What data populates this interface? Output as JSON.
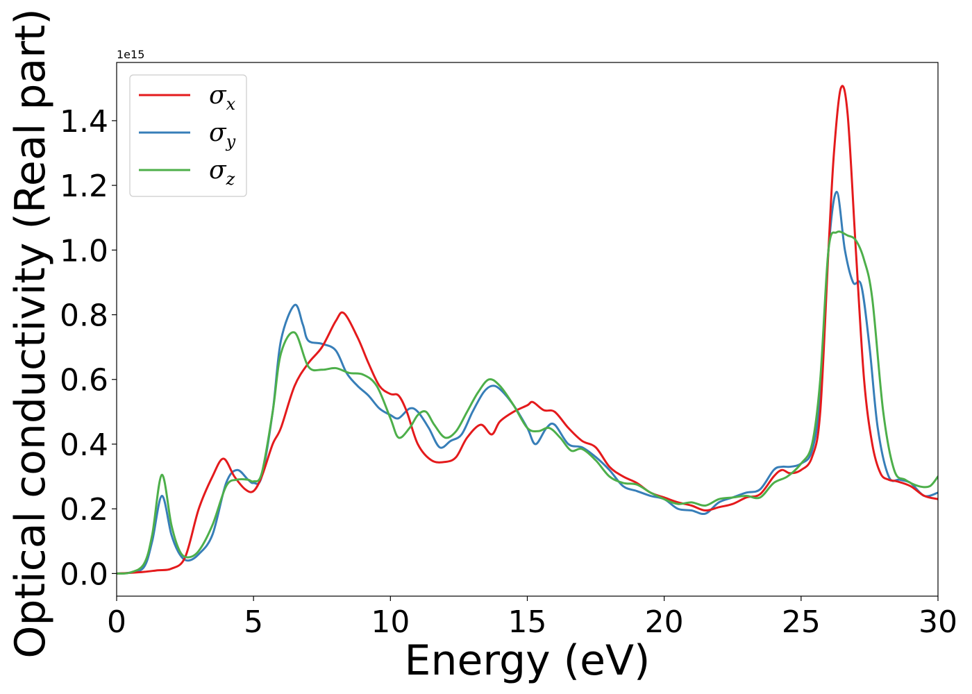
{
  "chart_data": {
    "type": "line",
    "title": "",
    "xlabel": "Energy (eV)",
    "ylabel": "Optical conductivity (Real part)",
    "y_offset_text": "1e15",
    "xlim": [
      0,
      30
    ],
    "ylim": [
      -0.07,
      1.58
    ],
    "x_ticks": [
      0,
      5,
      10,
      15,
      20,
      25,
      30
    ],
    "x_tick_labels": [
      "0",
      "5",
      "10",
      "15",
      "20",
      "25",
      "30"
    ],
    "y_ticks": [
      0.0,
      0.2,
      0.4,
      0.6,
      0.8,
      1.0,
      1.2,
      1.4
    ],
    "y_tick_labels": [
      "0.0",
      "0.2",
      "0.4",
      "0.6",
      "0.8",
      "1.0",
      "1.2",
      "1.4"
    ],
    "grid": false,
    "legend_position": "top-left",
    "series": [
      {
        "name": "σ_x",
        "legend_symbol": "σ",
        "legend_sub": "x",
        "color": "#e41a1c",
        "x": [
          0,
          0.5,
          1,
          1.5,
          2,
          2.5,
          3,
          3.5,
          3.9,
          4.3,
          4.7,
          5,
          5.3,
          5.7,
          6,
          6.5,
          7,
          7.5,
          8,
          8.3,
          8.8,
          9.2,
          9.6,
          10,
          10.3,
          10.6,
          11,
          11.5,
          12,
          12.4,
          12.8,
          13.3,
          13.7,
          14,
          14.5,
          15,
          15.2,
          15.6,
          16,
          16.5,
          17,
          17.5,
          18,
          18.5,
          19,
          19.5,
          20,
          20.5,
          21,
          21.5,
          22,
          22.5,
          23,
          23.5,
          24,
          24.3,
          24.6,
          25,
          25.4,
          25.7,
          26,
          26.2,
          26.45,
          26.7,
          27,
          27.3,
          27.6,
          27.9,
          28.2,
          28.5,
          29,
          29.5,
          30
        ],
        "values": [
          0.0,
          0.002,
          0.005,
          0.01,
          0.015,
          0.05,
          0.2,
          0.3,
          0.355,
          0.3,
          0.26,
          0.255,
          0.3,
          0.4,
          0.45,
          0.58,
          0.65,
          0.7,
          0.78,
          0.805,
          0.73,
          0.65,
          0.58,
          0.555,
          0.55,
          0.5,
          0.4,
          0.35,
          0.345,
          0.36,
          0.42,
          0.46,
          0.43,
          0.47,
          0.5,
          0.52,
          0.53,
          0.505,
          0.5,
          0.45,
          0.41,
          0.39,
          0.33,
          0.3,
          0.28,
          0.25,
          0.235,
          0.22,
          0.21,
          0.195,
          0.205,
          0.215,
          0.235,
          0.245,
          0.3,
          0.32,
          0.31,
          0.32,
          0.36,
          0.5,
          1.0,
          1.3,
          1.5,
          1.42,
          1.0,
          0.6,
          0.4,
          0.31,
          0.29,
          0.285,
          0.27,
          0.24,
          0.23
        ]
      },
      {
        "name": "σ_y",
        "legend_symbol": "σ",
        "legend_sub": "y",
        "color": "#377eb8",
        "x": [
          0,
          0.5,
          1,
          1.3,
          1.65,
          2,
          2.3,
          2.6,
          3,
          3.5,
          4,
          4.4,
          4.8,
          5,
          5.3,
          5.7,
          6,
          6.5,
          6.8,
          7,
          7.5,
          8,
          8.4,
          8.8,
          9.2,
          9.6,
          10,
          10.3,
          10.7,
          11,
          11.4,
          11.8,
          12.2,
          12.6,
          13,
          13.4,
          13.7,
          14,
          14.5,
          15,
          15.3,
          15.7,
          16,
          16.5,
          17,
          17.5,
          18,
          18.5,
          19,
          19.5,
          20,
          20.5,
          21,
          21.5,
          22,
          22.5,
          23,
          23.5,
          24,
          24.3,
          24.6,
          25,
          25.4,
          25.7,
          26,
          26.3,
          26.6,
          26.9,
          27.2,
          27.5,
          27.8,
          28.2,
          28.6,
          29,
          29.5,
          30
        ],
        "values": [
          0.0,
          0.003,
          0.02,
          0.1,
          0.24,
          0.12,
          0.06,
          0.04,
          0.06,
          0.12,
          0.28,
          0.32,
          0.29,
          0.28,
          0.3,
          0.5,
          0.72,
          0.83,
          0.77,
          0.72,
          0.71,
          0.69,
          0.62,
          0.58,
          0.55,
          0.51,
          0.49,
          0.48,
          0.51,
          0.5,
          0.45,
          0.39,
          0.41,
          0.43,
          0.5,
          0.56,
          0.58,
          0.57,
          0.52,
          0.45,
          0.4,
          0.45,
          0.46,
          0.4,
          0.39,
          0.36,
          0.32,
          0.27,
          0.255,
          0.24,
          0.23,
          0.2,
          0.195,
          0.185,
          0.22,
          0.235,
          0.25,
          0.26,
          0.32,
          0.33,
          0.33,
          0.34,
          0.38,
          0.55,
          1.0,
          1.18,
          1.0,
          0.9,
          0.89,
          0.7,
          0.45,
          0.3,
          0.29,
          0.28,
          0.24,
          0.25
        ]
      },
      {
        "name": "σ_z",
        "legend_symbol": "σ",
        "legend_sub": "z",
        "color": "#4daf4a",
        "x": [
          0,
          0.5,
          1,
          1.3,
          1.65,
          2,
          2.3,
          2.6,
          3,
          3.5,
          4,
          4.4,
          4.8,
          5,
          5.3,
          5.7,
          6,
          6.5,
          7,
          7.5,
          8,
          8.5,
          9,
          9.5,
          10,
          10.3,
          10.7,
          11,
          11.3,
          11.6,
          12,
          12.4,
          12.8,
          13.2,
          13.6,
          14,
          14.5,
          15,
          15.4,
          15.8,
          16.2,
          16.6,
          17,
          17.5,
          18,
          18.5,
          19,
          19.5,
          20,
          20.5,
          21,
          21.5,
          22,
          22.5,
          23,
          23.5,
          24,
          24.5,
          25,
          25.4,
          25.7,
          26,
          26.3,
          26.7,
          27,
          27.3,
          27.6,
          28,
          28.4,
          28.8,
          29.3,
          29.7,
          30
        ],
        "values": [
          0.0,
          0.003,
          0.03,
          0.12,
          0.305,
          0.15,
          0.07,
          0.05,
          0.07,
          0.15,
          0.27,
          0.29,
          0.29,
          0.285,
          0.31,
          0.5,
          0.68,
          0.745,
          0.64,
          0.63,
          0.635,
          0.62,
          0.615,
          0.58,
          0.48,
          0.42,
          0.45,
          0.49,
          0.5,
          0.46,
          0.42,
          0.44,
          0.5,
          0.56,
          0.6,
          0.58,
          0.52,
          0.45,
          0.44,
          0.45,
          0.42,
          0.38,
          0.385,
          0.35,
          0.3,
          0.28,
          0.275,
          0.25,
          0.23,
          0.215,
          0.22,
          0.21,
          0.23,
          0.235,
          0.24,
          0.235,
          0.28,
          0.3,
          0.34,
          0.4,
          0.6,
          1.0,
          1.055,
          1.045,
          1.03,
          0.97,
          0.85,
          0.5,
          0.32,
          0.29,
          0.27,
          0.27,
          0.3
        ]
      }
    ]
  }
}
